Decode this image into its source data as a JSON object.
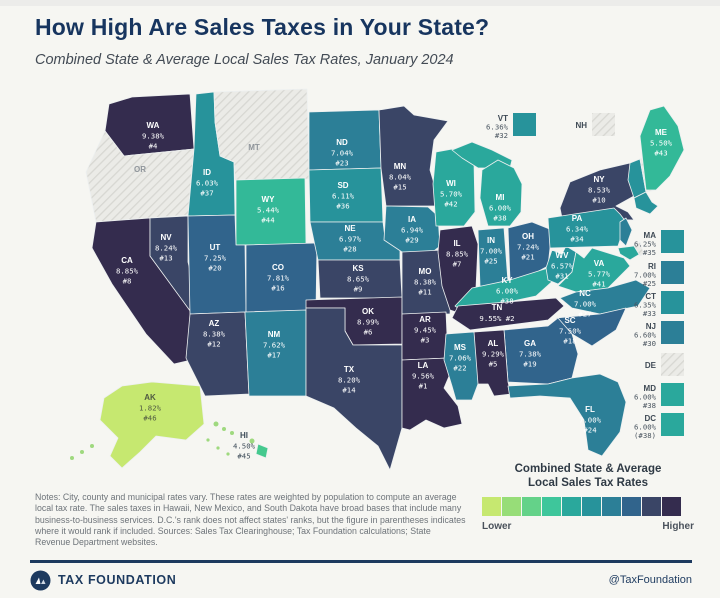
{
  "title": "How High Are Sales Taxes in Your State?",
  "subtitle": "Combined State & Average Local Sales Tax Rates, January 2024",
  "notes": "Notes: City, county and municipal rates vary. These rates are weighted by population to compute an average local tax rate. The sales taxes in Hawaii, New Mexico, and South Dakota have broad bases that include many business-to-business services. D.C.'s rank does not affect states' ranks, but the figure in parentheses indicates where it would rank if included. Sources: Sales Tax Clearinghouse; Tax Foundation calculations; State Revenue Department websites.",
  "legend": {
    "title_line1": "Combined State & Average",
    "title_line2": "Local Sales Tax Rates",
    "lower": "Lower",
    "higher": "Higher",
    "colors": [
      "#c6e870",
      "#97dd78",
      "#64d289",
      "#3ec69b",
      "#2aa89c",
      "#27939b",
      "#2c7f97",
      "#31648c",
      "#3a4566",
      "#342c4e"
    ]
  },
  "footer": {
    "brand": "TAX FOUNDATION",
    "handle": "@TaxFoundation"
  },
  "states": {
    "WA": {
      "abbr": "WA",
      "rate": "9.38%",
      "rank": "#4",
      "color": "#342c4e"
    },
    "OR": {
      "abbr": "OR",
      "rate": "",
      "rank": "",
      "color": "hatch"
    },
    "CA": {
      "abbr": "CA",
      "rate": "8.85%",
      "rank": "#8",
      "color": "#342c4e"
    },
    "NV": {
      "abbr": "NV",
      "rate": "8.24%",
      "rank": "#13",
      "color": "#3a4566"
    },
    "ID": {
      "abbr": "ID",
      "rate": "6.03%",
      "rank": "#37",
      "color": "#27939b"
    },
    "MT": {
      "abbr": "MT",
      "rate": "",
      "rank": "",
      "color": "hatch"
    },
    "WY": {
      "abbr": "WY",
      "rate": "5.44%",
      "rank": "#44",
      "color": "#33b998"
    },
    "UT": {
      "abbr": "UT",
      "rate": "7.25%",
      "rank": "#20",
      "color": "#31648c"
    },
    "CO": {
      "abbr": "CO",
      "rate": "7.81%",
      "rank": "#16",
      "color": "#31648c"
    },
    "AZ": {
      "abbr": "AZ",
      "rate": "8.38%",
      "rank": "#12",
      "color": "#3a4566"
    },
    "NM": {
      "abbr": "NM",
      "rate": "7.62%",
      "rank": "#17",
      "color": "#2c7f97"
    },
    "ND": {
      "abbr": "ND",
      "rate": "7.04%",
      "rank": "#23",
      "color": "#2c7f97"
    },
    "SD": {
      "abbr": "SD",
      "rate": "6.11%",
      "rank": "#36",
      "color": "#27939b"
    },
    "NE": {
      "abbr": "NE",
      "rate": "6.97%",
      "rank": "#28",
      "color": "#2c7f97"
    },
    "KS": {
      "abbr": "KS",
      "rate": "8.65%",
      "rank": "#9",
      "color": "#3a4566"
    },
    "OK": {
      "abbr": "OK",
      "rate": "8.99%",
      "rank": "#6",
      "color": "#342c4e"
    },
    "TX": {
      "abbr": "TX",
      "rate": "8.20%",
      "rank": "#14",
      "color": "#3a4566"
    },
    "MN": {
      "abbr": "MN",
      "rate": "8.04%",
      "rank": "#15",
      "color": "#3a4566"
    },
    "IA": {
      "abbr": "IA",
      "rate": "6.94%",
      "rank": "#29",
      "color": "#2c7f97"
    },
    "MO": {
      "abbr": "MO",
      "rate": "8.38%",
      "rank": "#11",
      "color": "#3a4566"
    },
    "AR": {
      "abbr": "AR",
      "rate": "9.45%",
      "rank": "#3",
      "color": "#342c4e"
    },
    "LA": {
      "abbr": "LA",
      "rate": "9.56%",
      "rank": "#1",
      "color": "#342c4e"
    },
    "WI": {
      "abbr": "WI",
      "rate": "5.70%",
      "rank": "#42",
      "color": "#2aa89c"
    },
    "IL": {
      "abbr": "IL",
      "rate": "8.85%",
      "rank": "#7",
      "color": "#342c4e"
    },
    "MI": {
      "abbr": "MI",
      "rate": "6.00%",
      "rank": "#38",
      "color": "#2aa89c"
    },
    "IN": {
      "abbr": "IN",
      "rate": "7.00%",
      "rank": "#25",
      "color": "#2c7f97"
    },
    "OH": {
      "abbr": "OH",
      "rate": "7.24%",
      "rank": "#21",
      "color": "#31648c"
    },
    "KY": {
      "abbr": "KY",
      "rate": "6.00%",
      "rank": "#38",
      "color": "#2aa89c"
    },
    "TN": {
      "abbr": "TN",
      "rate": "9.55%",
      "rank": "#2",
      "rate_rank": "9.55% #2",
      "color": "#342c4e"
    },
    "WV": {
      "abbr": "WV",
      "rate": "6.57%",
      "rank": "#31",
      "color": "#27939b"
    },
    "VA": {
      "abbr": "VA",
      "rate": "5.77%",
      "rank": "#41",
      "color": "#2aa89c"
    },
    "NC": {
      "abbr": "NC",
      "rate": "7.00%",
      "rank": "#27",
      "color": "#2c7f97"
    },
    "SC": {
      "abbr": "SC",
      "rate": "7.50%",
      "rank": "#18",
      "color": "#31648c"
    },
    "GA": {
      "abbr": "GA",
      "rate": "7.38%",
      "rank": "#19",
      "color": "#31648c"
    },
    "AL": {
      "abbr": "AL",
      "rate": "9.29%",
      "rank": "#5",
      "color": "#342c4e"
    },
    "MS": {
      "abbr": "MS",
      "rate": "7.06%",
      "rank": "#22",
      "color": "#2c7f97"
    },
    "FL": {
      "abbr": "FL",
      "rate": "7.00%",
      "rank": "#24",
      "color": "#2c7f97"
    },
    "NY": {
      "abbr": "NY",
      "rate": "8.53%",
      "rank": "#10",
      "color": "#3a4566"
    },
    "PA": {
      "abbr": "PA",
      "rate": "6.34%",
      "rank": "#34",
      "color": "#27939b"
    },
    "ME": {
      "abbr": "ME",
      "rate": "5.50%",
      "rank": "#43",
      "color": "#33b998"
    },
    "AK": {
      "abbr": "AK",
      "rate": "1.82%",
      "rank": "#46",
      "color": "#c6e870"
    },
    "HI": {
      "abbr": "HI",
      "rate": "4.50%",
      "rank": "#45",
      "color": "#45c98e"
    },
    "VT": {
      "abbr": "VT",
      "rate": "6.36%",
      "rank": "#32",
      "color": "#27939b"
    },
    "NH": {
      "abbr": "NH",
      "rate": "",
      "rank": "",
      "color": "hatch"
    },
    "MA": {
      "abbr": "MA",
      "rate": "6.25%",
      "rank": "#35",
      "color": "#27939b"
    },
    "RI": {
      "abbr": "RI",
      "rate": "7.00%",
      "rank": "#25",
      "color": "#2c7f97"
    },
    "CT": {
      "abbr": "CT",
      "rate": "6.35%",
      "rank": "#33",
      "color": "#27939b"
    },
    "NJ": {
      "abbr": "NJ",
      "rate": "6.60%",
      "rank": "#30",
      "color": "#2c7f97"
    },
    "DE": {
      "abbr": "DE",
      "rate": "",
      "rank": "",
      "color": "hatch"
    },
    "MD": {
      "abbr": "MD",
      "rate": "6.00%",
      "rank": "#38",
      "color": "#2aa89c"
    },
    "DC": {
      "abbr": "DC",
      "rate": "6.00%",
      "rank": "(#38)",
      "color": "#2aa89c"
    }
  }
}
